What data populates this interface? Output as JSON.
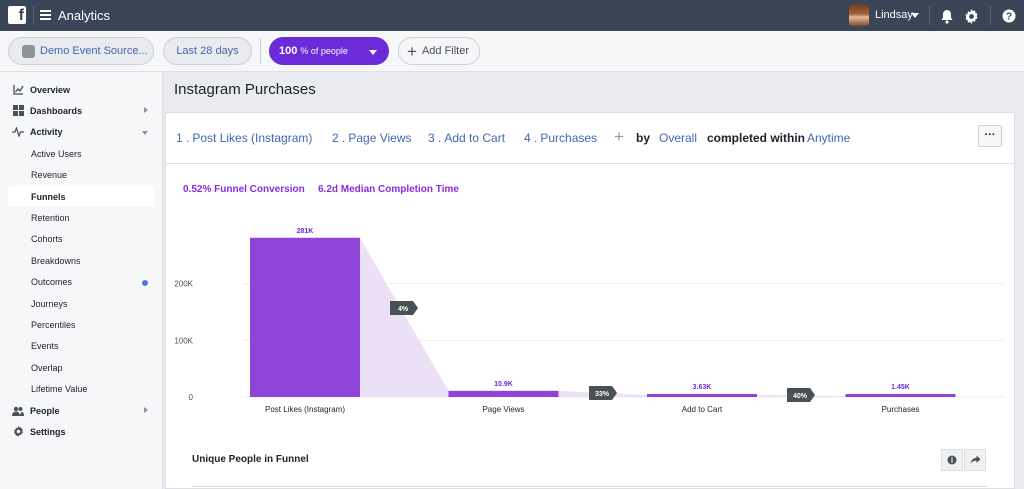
{
  "app": {
    "title": "Analytics"
  },
  "user": {
    "name": "Lindsay"
  },
  "filters": {
    "source": "Demo Event Source...",
    "date_range": "Last 28 days",
    "people_pct": "100",
    "people_suffix": "% of people",
    "add_filter": "Add Filter"
  },
  "sidebar": {
    "items": [
      {
        "label": "Overview",
        "icon": "chart-icon",
        "level": "top"
      },
      {
        "label": "Dashboards",
        "icon": "grid-icon",
        "level": "top",
        "arrow": "right"
      },
      {
        "label": "Activity",
        "icon": "activity-icon",
        "level": "top",
        "arrow": "down"
      },
      {
        "label": "Active Users",
        "level": "sub"
      },
      {
        "label": "Revenue",
        "level": "sub"
      },
      {
        "label": "Funnels",
        "level": "sub",
        "active": true
      },
      {
        "label": "Retention",
        "level": "sub"
      },
      {
        "label": "Cohorts",
        "level": "sub"
      },
      {
        "label": "Breakdowns",
        "level": "sub"
      },
      {
        "label": "Outcomes",
        "level": "sub",
        "dot": true
      },
      {
        "label": "Journeys",
        "level": "sub"
      },
      {
        "label": "Percentiles",
        "level": "sub"
      },
      {
        "label": "Events",
        "level": "sub"
      },
      {
        "label": "Overlap",
        "level": "sub"
      },
      {
        "label": "Lifetime Value",
        "level": "sub"
      },
      {
        "label": "People",
        "icon": "people-icon",
        "level": "top",
        "arrow": "right"
      },
      {
        "label": "Settings",
        "icon": "gear-icon",
        "level": "top"
      }
    ]
  },
  "page": {
    "title": "Instagram Purchases"
  },
  "funnel": {
    "steps": [
      {
        "num": "1 .",
        "label": "Post Likes (Instagram)"
      },
      {
        "num": "2 .",
        "label": "Page Views"
      },
      {
        "num": "3 .",
        "label": "Add to Cart"
      },
      {
        "num": "4 .",
        "label": "Purchases"
      }
    ],
    "by_label": "by",
    "by_value": "Overall",
    "completed_label": "completed within",
    "completed_value": "Anytime",
    "more": "···",
    "conversion": "0.52% Funnel Conversion",
    "median_time": "6.2d Median Completion Time"
  },
  "chart_data": {
    "type": "bar",
    "categories": [
      "Post Likes (Instagram)",
      "Page Views",
      "Add to Cart",
      "Purchases"
    ],
    "values": [
      281000,
      10900,
      3630,
      1450
    ],
    "value_labels": [
      "281K",
      "10.9K",
      "3.63K",
      "1.45K"
    ],
    "step_conversions": [
      "4%",
      "33%",
      "40%"
    ],
    "y_ticks": [
      0,
      100000,
      200000
    ],
    "y_tick_labels": [
      "0",
      "100K",
      "200K"
    ],
    "ylim": [
      0,
      300000
    ],
    "bar_color": "#8e44d8",
    "grid": true
  },
  "bottom": {
    "title": "Unique People in Funnel"
  },
  "colors": {
    "topbar": "#3a4555",
    "accent": "#6c2bd9",
    "link": "#4267b2"
  }
}
